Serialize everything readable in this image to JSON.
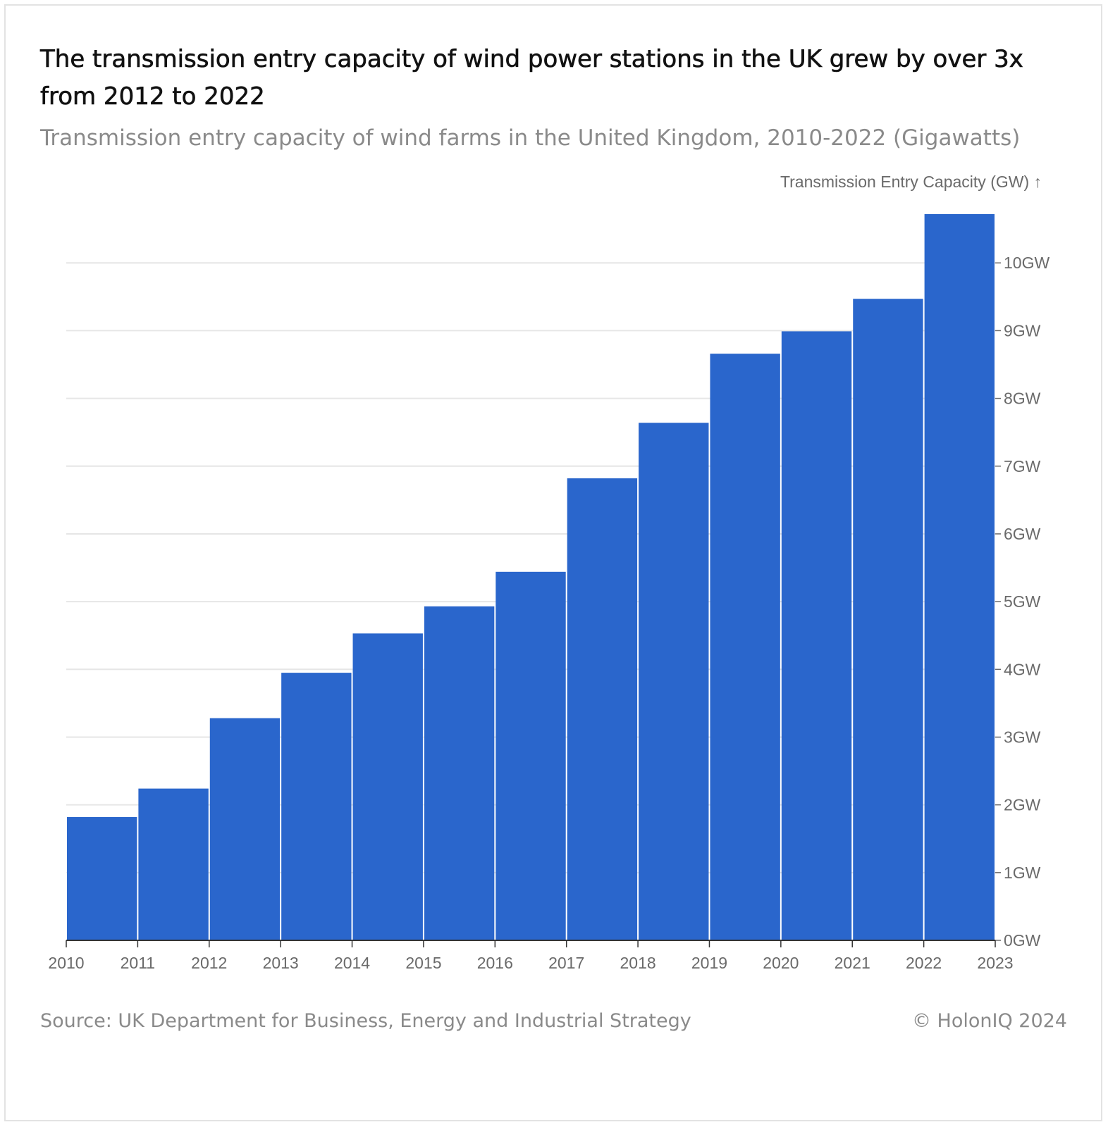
{
  "title": "The transmission entry capacity of wind power stations in the UK grew by over 3x from 2012 to 2022",
  "subtitle": "Transmission entry capacity of wind farms in the United Kingdom, 2010-2022 (Gigawatts)",
  "footer": {
    "source": "Source: UK Department for Business, Energy and Industrial Strategy",
    "credit": "© HolonIQ 2024"
  },
  "colors": {
    "bar": "#2a66cc",
    "grid": "#e6e6e6",
    "axis": "#333333",
    "tick_text": "#6a6a6a"
  },
  "chart_data": {
    "type": "bar",
    "title": "The transmission entry capacity of wind power stations in the UK grew by over 3x from 2012 to 2022",
    "subtitle": "Transmission entry capacity of wind farms in the United Kingdom, 2010-2022 (Gigawatts)",
    "xlabel": "",
    "ylabel": "Transmission Entry Capacity (GW) ↑",
    "categories": [
      "2010",
      "2011",
      "2012",
      "2013",
      "2014",
      "2015",
      "2016",
      "2017",
      "2018",
      "2019",
      "2020",
      "2021",
      "2022"
    ],
    "values": [
      1.82,
      2.24,
      3.28,
      3.95,
      4.53,
      4.93,
      5.44,
      6.82,
      7.64,
      8.66,
      8.99,
      9.47,
      10.72
    ],
    "x_ticks": [
      "2010",
      "2011",
      "2012",
      "2013",
      "2014",
      "2015",
      "2016",
      "2017",
      "2018",
      "2019",
      "2020",
      "2021",
      "2022",
      "2023"
    ],
    "y_ticks": [
      0,
      1,
      2,
      3,
      4,
      5,
      6,
      7,
      8,
      9,
      10
    ],
    "y_tick_labels": [
      "0GW",
      "1GW",
      "2GW",
      "3GW",
      "4GW",
      "5GW",
      "6GW",
      "7GW",
      "8GW",
      "9GW",
      "10GW"
    ],
    "ylim": [
      0,
      10.72
    ],
    "y_axis_side": "right",
    "grid": true,
    "legend": "none"
  }
}
